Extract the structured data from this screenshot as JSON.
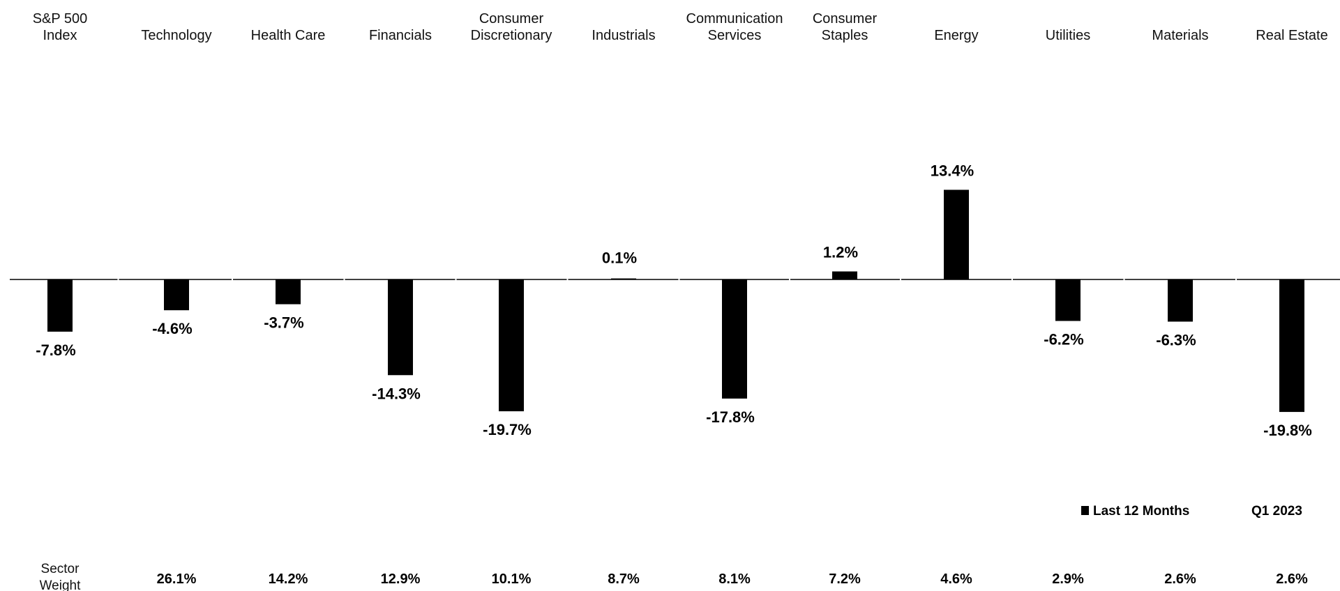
{
  "chart_data": {
    "type": "bar",
    "categories": [
      [
        "S&P 500",
        "Index"
      ],
      [
        "Technology"
      ],
      [
        "Health Care"
      ],
      [
        "Financials"
      ],
      [
        "Consumer",
        "Discretionary"
      ],
      [
        "Industrials"
      ],
      [
        "Communication",
        "Services"
      ],
      [
        "Consumer",
        "Staples"
      ],
      [
        "Energy"
      ],
      [
        "Utilities"
      ],
      [
        "Materials"
      ],
      [
        "Real Estate"
      ]
    ],
    "series": [
      {
        "name": "Last 12 Months",
        "values": [
          -7.8,
          -4.6,
          -3.7,
          -14.3,
          -19.7,
          0.1,
          -17.8,
          1.2,
          13.4,
          -6.2,
          -6.3,
          -19.8
        ],
        "labels": [
          "-7.8%",
          "-4.6%",
          "-3.7%",
          "-14.3%",
          "-19.7%",
          "0.1%",
          "-17.8%",
          "1.2%",
          "13.4%",
          "-6.2%",
          "-6.3%",
          "-19.8%"
        ]
      }
    ],
    "legend": {
      "series_label": "Last 12 Months",
      "period_label": "Q1 2023",
      "placement": "bottom-right"
    },
    "sector_weight_title": [
      "Sector",
      "Weight"
    ],
    "sector_weights": [
      "26.1%",
      "14.2%",
      "12.9%",
      "10.1%",
      "8.7%",
      "8.1%",
      "7.2%",
      "4.6%",
      "2.9%",
      "2.6%",
      "2.6%"
    ],
    "grid": false,
    "colors": {
      "bar": "#000000",
      "baseline": "#000000",
      "background": "#ffffff"
    }
  }
}
